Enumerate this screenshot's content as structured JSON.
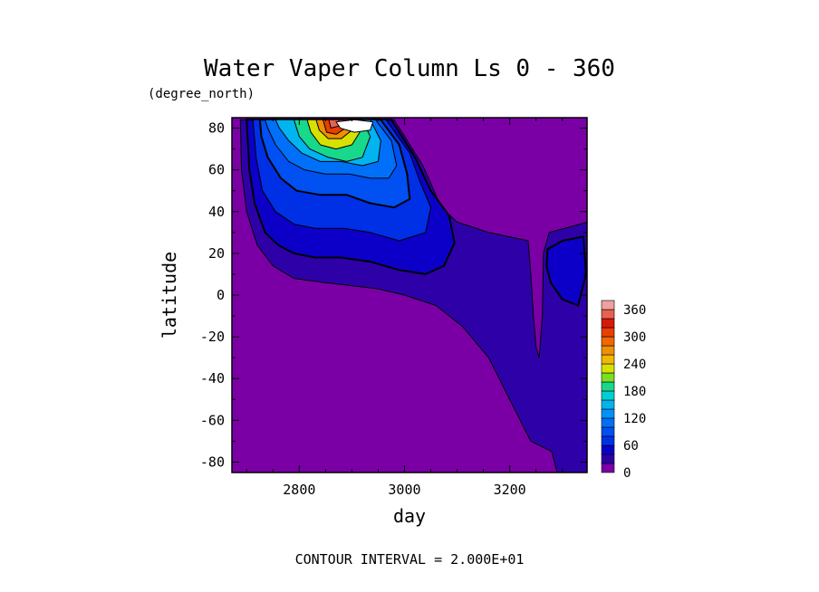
{
  "chart_data": {
    "type": "heatmap",
    "title": "Water Vaper Column Ls 0 - 360",
    "subtitle": "(degree_north)",
    "xlabel": "day",
    "ylabel": "latitude",
    "footer": "CONTOUR INTERVAL = 2.000E+01",
    "xlim": [
      2672,
      3347
    ],
    "ylim": [
      -85,
      85
    ],
    "x_ticks": [
      2800,
      3000,
      3200
    ],
    "y_ticks": [
      80,
      60,
      40,
      20,
      0,
      -20,
      -40,
      -60,
      -80
    ],
    "colorbar": {
      "levels": [
        0,
        20,
        40,
        60,
        80,
        100,
        120,
        140,
        160,
        180,
        200,
        220,
        240,
        260,
        280,
        300,
        320,
        340,
        360,
        380
      ],
      "labels": [
        "0",
        "60",
        "120",
        "180",
        "240",
        "300",
        "360"
      ],
      "colors": [
        "#7a00a6",
        "#2e00a8",
        "#0c00c8",
        "#0030e6",
        "#0050f2",
        "#0070f8",
        "#0092f8",
        "#00b4f0",
        "#00d0d0",
        "#18d88c",
        "#78e020",
        "#d8e000",
        "#f0b800",
        "#f09000",
        "#f06800",
        "#e84000",
        "#d81808",
        "#e86050",
        "#f0a0a0"
      ]
    },
    "regions": [
      {
        "level": 20,
        "points": [
          [
            2688,
            84
          ],
          [
            2980,
            84
          ],
          [
            3035,
            62
          ],
          [
            3070,
            42
          ],
          [
            3100,
            35
          ],
          [
            3160,
            30
          ],
          [
            3235,
            26
          ],
          [
            3240,
            10
          ],
          [
            3245,
            -10
          ],
          [
            3250,
            -25
          ],
          [
            3256,
            -30
          ],
          [
            3262,
            -10
          ],
          [
            3264,
            20
          ],
          [
            3275,
            30
          ],
          [
            3320,
            33
          ],
          [
            3347,
            35
          ],
          [
            3347,
            -85
          ],
          [
            3290,
            -85
          ],
          [
            3280,
            -75
          ],
          [
            3240,
            -70
          ],
          [
            3200,
            -50
          ],
          [
            3160,
            -30
          ],
          [
            3110,
            -15
          ],
          [
            3060,
            -5
          ],
          [
            3000,
            0
          ],
          [
            2950,
            3
          ],
          [
            2850,
            6
          ],
          [
            2790,
            8
          ],
          [
            2750,
            14
          ],
          [
            2720,
            24
          ],
          [
            2700,
            40
          ],
          [
            2690,
            60
          ]
        ]
      },
      {
        "level": 40,
        "points": [
          [
            2700,
            84
          ],
          [
            2975,
            84
          ],
          [
            3020,
            66
          ],
          [
            3050,
            50
          ],
          [
            3085,
            38
          ],
          [
            3095,
            25
          ],
          [
            3075,
            14
          ],
          [
            3040,
            10
          ],
          [
            2990,
            12
          ],
          [
            2935,
            16
          ],
          [
            2880,
            18
          ],
          [
            2830,
            18
          ],
          [
            2790,
            20
          ],
          [
            2760,
            24
          ],
          [
            2735,
            30
          ],
          [
            2715,
            44
          ],
          [
            2705,
            60
          ]
        ]
      },
      {
        "level": 40,
        "points": [
          [
            3272,
            22
          ],
          [
            3300,
            26
          ],
          [
            3340,
            28
          ],
          [
            3345,
            10
          ],
          [
            3330,
            -5
          ],
          [
            3300,
            -2
          ],
          [
            3278,
            6
          ],
          [
            3270,
            14
          ]
        ]
      },
      {
        "level": 60,
        "points": [
          [
            2712,
            84
          ],
          [
            2965,
            84
          ],
          [
            3010,
            68
          ],
          [
            3030,
            54
          ],
          [
            3050,
            42
          ],
          [
            3040,
            30
          ],
          [
            2990,
            26
          ],
          [
            2935,
            30
          ],
          [
            2885,
            32
          ],
          [
            2830,
            32
          ],
          [
            2790,
            34
          ],
          [
            2755,
            40
          ],
          [
            2730,
            50
          ],
          [
            2718,
            66
          ]
        ]
      },
      {
        "level": 80,
        "points": [
          [
            2725,
            84
          ],
          [
            2955,
            84
          ],
          [
            2990,
            72
          ],
          [
            3005,
            58
          ],
          [
            3010,
            46
          ],
          [
            2980,
            42
          ],
          [
            2935,
            44
          ],
          [
            2890,
            48
          ],
          [
            2840,
            48
          ],
          [
            2795,
            50
          ],
          [
            2765,
            56
          ],
          [
            2740,
            66
          ],
          [
            2728,
            76
          ]
        ]
      },
      {
        "level": 100,
        "points": [
          [
            2735,
            84
          ],
          [
            2945,
            84
          ],
          [
            2975,
            74
          ],
          [
            2985,
            62
          ],
          [
            2970,
            56
          ],
          [
            2935,
            56
          ],
          [
            2895,
            58
          ],
          [
            2850,
            58
          ],
          [
            2810,
            60
          ],
          [
            2780,
            64
          ],
          [
            2755,
            72
          ],
          [
            2740,
            80
          ]
        ]
      },
      {
        "level": 140,
        "points": [
          [
            2755,
            84
          ],
          [
            2935,
            84
          ],
          [
            2955,
            74
          ],
          [
            2950,
            64
          ],
          [
            2920,
            62
          ],
          [
            2880,
            64
          ],
          [
            2840,
            64
          ],
          [
            2805,
            68
          ],
          [
            2780,
            74
          ],
          [
            2762,
            80
          ]
        ]
      },
      {
        "level": 180,
        "points": [
          [
            2790,
            84
          ],
          [
            2920,
            84
          ],
          [
            2935,
            76
          ],
          [
            2920,
            66
          ],
          [
            2890,
            64
          ],
          [
            2855,
            66
          ],
          [
            2820,
            70
          ],
          [
            2800,
            76
          ]
        ]
      },
      {
        "level": 220,
        "points": [
          [
            2815,
            84
          ],
          [
            2905,
            84
          ],
          [
            2915,
            78
          ],
          [
            2900,
            72
          ],
          [
            2870,
            70
          ],
          [
            2840,
            72
          ],
          [
            2822,
            78
          ]
        ]
      },
      {
        "level": 260,
        "points": [
          [
            2832,
            84
          ],
          [
            2895,
            84
          ],
          [
            2900,
            79
          ],
          [
            2880,
            75
          ],
          [
            2855,
            75
          ],
          [
            2838,
            79
          ]
        ]
      },
      {
        "level": 300,
        "points": [
          [
            2845,
            84
          ],
          [
            2885,
            84
          ],
          [
            2888,
            80
          ],
          [
            2870,
            77
          ],
          [
            2852,
            78
          ]
        ]
      },
      {
        "level": 340,
        "points": [
          [
            2856,
            84
          ],
          [
            2875,
            84
          ],
          [
            2876,
            81
          ],
          [
            2860,
            80
          ]
        ]
      }
    ],
    "blanks": [
      {
        "points": [
          [
            2870,
            83
          ],
          [
            2905,
            84
          ],
          [
            2940,
            83
          ],
          [
            2935,
            79
          ],
          [
            2905,
            78
          ],
          [
            2878,
            80
          ]
        ]
      }
    ]
  }
}
